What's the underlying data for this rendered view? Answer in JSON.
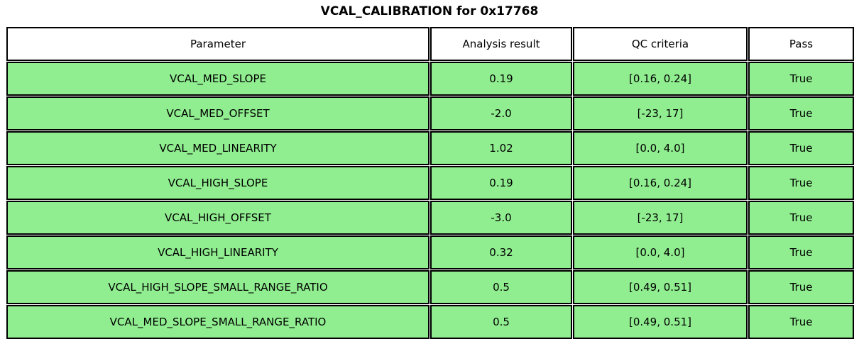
{
  "title": "VCAL_CALIBRATION for 0x17768",
  "colors": {
    "row_green": "#90EE90",
    "header_bg": "#FFFFFF",
    "border": "#000000",
    "text": "#000000"
  },
  "chart_data": {
    "type": "table",
    "title": "VCAL_CALIBRATION for 0x17768",
    "columns": [
      "Parameter",
      "Analysis result",
      "QC criteria",
      "Pass"
    ],
    "rows": [
      [
        "VCAL_MED_SLOPE",
        "0.19",
        "[0.16, 0.24]",
        "True"
      ],
      [
        "VCAL_MED_OFFSET",
        "-2.0",
        "[-23, 17]",
        "True"
      ],
      [
        "VCAL_MED_LINEARITY",
        "1.02",
        "[0.0, 4.0]",
        "True"
      ],
      [
        "VCAL_HIGH_SLOPE",
        "0.19",
        "[0.16, 0.24]",
        "True"
      ],
      [
        "VCAL_HIGH_OFFSET",
        "-3.0",
        "[-23, 17]",
        "True"
      ],
      [
        "VCAL_HIGH_LINEARITY",
        "0.32",
        "[0.0, 4.0]",
        "True"
      ],
      [
        "VCAL_HIGH_SLOPE_SMALL_RANGE_RATIO",
        "0.5",
        "[0.49, 0.51]",
        "True"
      ],
      [
        "VCAL_MED_SLOPE_SMALL_RANGE_RATIO",
        "0.5",
        "[0.49, 0.51]",
        "True"
      ]
    ],
    "layout": {
      "header_background": "#FFFFFF",
      "row_background": "#90EE90",
      "grid": true,
      "all_pass": true
    }
  }
}
